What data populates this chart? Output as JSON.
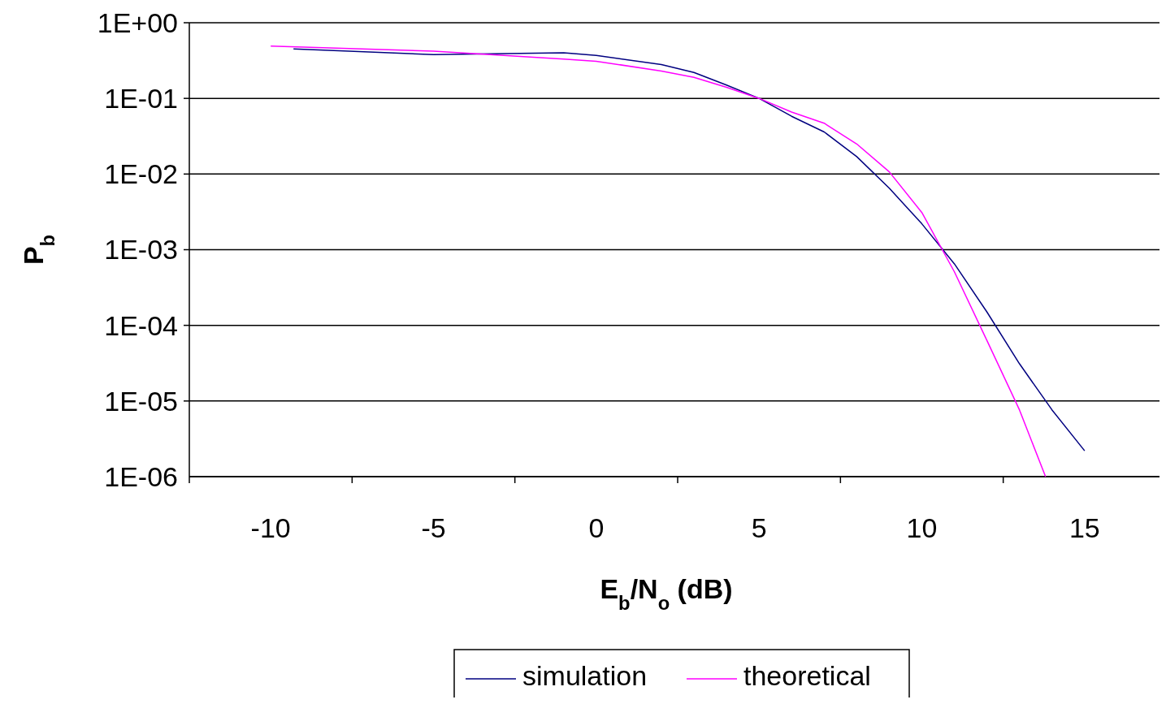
{
  "chart_data": {
    "type": "line",
    "xlabel": "E$_{b}$/N$_{o}$ (dB)",
    "ylabel": "P$_{b}$",
    "log": "y",
    "grid": "y",
    "legend": "bottom",
    "marker": "none",
    "line_style": "solid",
    "xlim": [
      -12.5,
      17.3
    ],
    "xticks": [
      {
        "value": -12.5,
        "label": null
      },
      -10,
      {
        "value": -7.5,
        "label": null
      },
      -5,
      {
        "value": -2.5,
        "label": null
      },
      0,
      {
        "value": 2.5,
        "label": null
      },
      5,
      {
        "value": 7.5,
        "label": null
      },
      10,
      {
        "value": 12.5,
        "label": null
      },
      15
    ],
    "ylim": [
      1e-06,
      1
    ],
    "yticks": [
      {
        "value": 1,
        "label": "1E+00"
      },
      {
        "value": 0.1,
        "label": "1E-01"
      },
      {
        "value": 0.01,
        "label": "1E-02"
      },
      {
        "value": 0.001,
        "label": "1E-03"
      },
      {
        "value": 0.0001,
        "label": "1E-04"
      },
      {
        "value": 1e-05,
        "label": "1E-05"
      },
      {
        "value": 1e-06,
        "label": "1E-06"
      }
    ],
    "series": [
      {
        "name": "simulation",
        "color": "#000080",
        "x": [
          -9.3,
          -5,
          -1,
          0,
          2,
          3,
          4,
          5,
          6,
          7,
          8,
          9,
          10,
          11,
          12,
          13,
          14,
          15
        ],
        "values": [
          0.45,
          0.38,
          0.4,
          0.37,
          0.28,
          0.22,
          0.15,
          0.1,
          0.058,
          0.036,
          0.017,
          0.0065,
          0.0022,
          0.00065,
          0.00015,
          3.1e-05,
          7.6e-06,
          2.2e-06
        ]
      },
      {
        "name": "theoretical",
        "color": "#ff00ff",
        "x": [
          -10,
          -5,
          -1,
          0,
          2,
          3,
          4,
          5,
          6,
          7,
          8,
          9,
          10,
          11,
          12,
          13,
          13.8
        ],
        "values": [
          0.49,
          0.42,
          0.33,
          0.31,
          0.23,
          0.19,
          0.14,
          0.1,
          0.066,
          0.047,
          0.025,
          0.0107,
          0.0031,
          0.00051,
          6.3e-05,
          7.6e-06,
          1e-06
        ]
      }
    ]
  }
}
